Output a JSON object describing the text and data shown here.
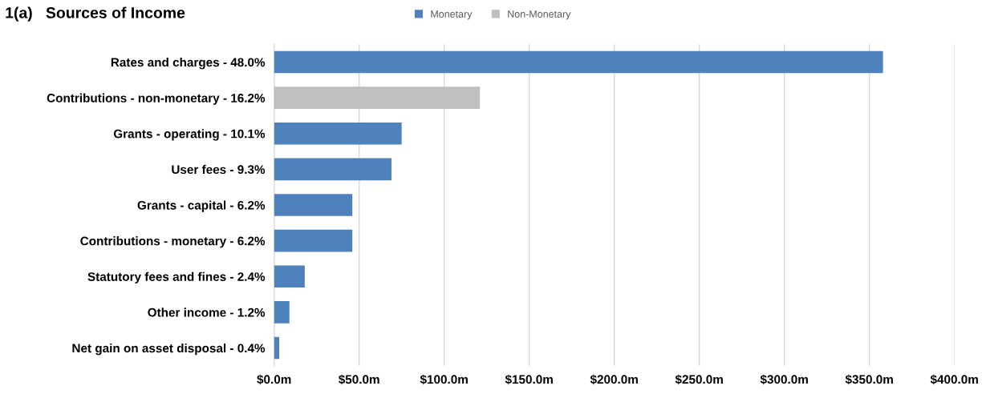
{
  "chart_data": {
    "type": "bar",
    "orientation": "horizontal",
    "title": "1(a)   Sources of Income",
    "categories": [
      "Rates and charges - 48.0%",
      "Contributions - non-monetary - 16.2%",
      "Grants - operating - 10.1%",
      "User fees - 9.3%",
      "Grants - capital - 6.2%",
      "Contributions - monetary - 6.2%",
      "Statutory fees and fines - 2.4%",
      "Other income - 1.2%",
      "Net gain on asset disposal - 0.4%"
    ],
    "series": [
      {
        "name": "Monetary",
        "color": "#4f81bd",
        "values": [
          358,
          null,
          75,
          69,
          46,
          46,
          18,
          9,
          3
        ]
      },
      {
        "name": "Non-Monetary",
        "color": "#bfbfbf",
        "values": [
          null,
          121,
          null,
          null,
          null,
          null,
          null,
          null,
          null
        ]
      }
    ],
    "xlim": [
      0,
      400
    ],
    "xticks": [
      {
        "value": 0,
        "label": "$0.0m"
      },
      {
        "value": 50,
        "label": "$50.0m"
      },
      {
        "value": 100,
        "label": "$100.0m"
      },
      {
        "value": 150,
        "label": "$150.0m"
      },
      {
        "value": 200,
        "label": "$200.0m"
      },
      {
        "value": 250,
        "label": "$250.0m"
      },
      {
        "value": 300,
        "label": "$300.0m"
      },
      {
        "value": 350,
        "label": "$350.0m"
      },
      {
        "value": 400,
        "label": "$400.0m"
      }
    ],
    "grid": "x",
    "legend": "top"
  }
}
